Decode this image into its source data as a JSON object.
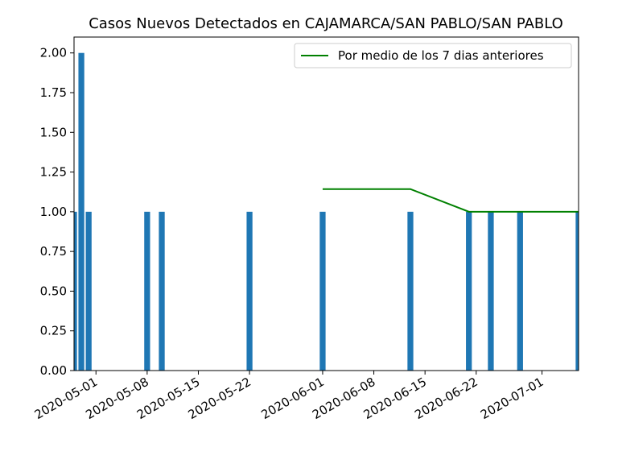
{
  "chart_data": {
    "type": "bar",
    "title": "Casos Nuevos Detectados en CAJAMARCA/SAN PABLO/SAN PABLO",
    "xlabel": "",
    "ylabel": "",
    "xlim": [
      "2020-04-28",
      "2020-07-06"
    ],
    "ylim": [
      0,
      2.1
    ],
    "grid": false,
    "legend_position": "top-right",
    "bar_color": "#1f77b4",
    "line_color": "#008000",
    "bars": {
      "x": [
        "2020-04-28",
        "2020-04-29",
        "2020-04-30",
        "2020-05-08",
        "2020-05-10",
        "2020-05-22",
        "2020-06-01",
        "2020-06-13",
        "2020-06-21",
        "2020-06-24",
        "2020-06-28",
        "2020-07-06"
      ],
      "values": [
        1,
        2,
        1,
        1,
        1,
        1,
        1,
        1,
        1,
        1,
        1,
        1
      ]
    },
    "series": [
      {
        "name": "Por medio de los 7 dias anteriores",
        "type": "line",
        "x": [
          "2020-06-01",
          "2020-06-13",
          "2020-06-21",
          "2020-06-24",
          "2020-06-28",
          "2020-07-06"
        ],
        "values": [
          1.142857,
          1.142857,
          1.0,
          1.0,
          1.0,
          1.0
        ]
      }
    ],
    "yticks": [
      "0.00",
      "0.25",
      "0.50",
      "0.75",
      "1.00",
      "1.25",
      "1.50",
      "1.75",
      "2.00"
    ],
    "xticks": [
      "2020-05-01",
      "2020-05-08",
      "2020-05-15",
      "2020-05-22",
      "2020-06-01",
      "2020-06-08",
      "2020-06-15",
      "2020-06-22",
      "2020-07-01"
    ]
  }
}
